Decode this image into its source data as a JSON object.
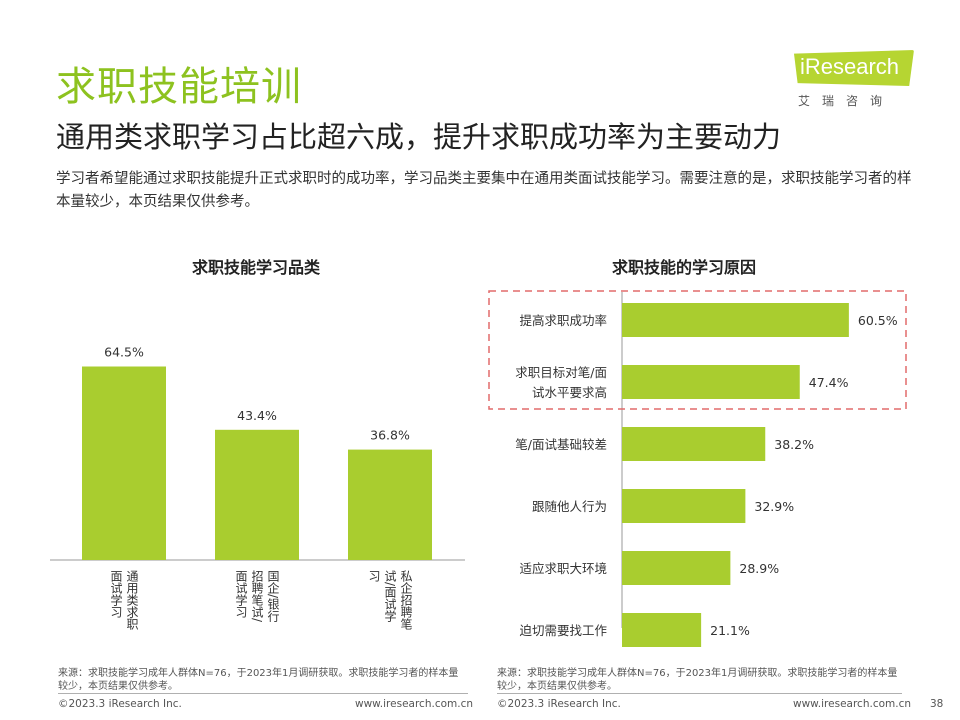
{
  "header": {
    "title": "求职技能培训",
    "subtitle": "通用类求职学习占比超六成，提升求职成功率为主要动力",
    "description": "学习者希望能通过求职技能提升正式求职时的成功率，学习品类主要集中在通用类面试技能学习。需要注意的是，求职技能学习者的样本量较少，本页结果仅供参考。"
  },
  "logo": {
    "text": "iResearch",
    "cn": "艾瑞咨询"
  },
  "colors": {
    "accent": "#8dc21f",
    "bar": "#a9cd2f",
    "highlight_box": "#e26b6b"
  },
  "chart_data": [
    {
      "type": "bar",
      "title": "求职技能学习品类",
      "categories": [
        "通用类求职面试学习",
        "国企/银行招聘笔试/面试学习",
        "私企招聘笔试/面试学习"
      ],
      "category_lines": [
        [
          "通用类求职",
          "面试学习"
        ],
        [
          "国企/银行",
          "招聘笔试/",
          "面试学习"
        ],
        [
          "私企招聘笔",
          "试/面试学",
          "习"
        ]
      ],
      "values": [
        64.5,
        43.4,
        36.8
      ],
      "value_labels": [
        "64.5%",
        "43.4%",
        "36.8%"
      ],
      "ylim": [
        0,
        100
      ],
      "grid": false,
      "legend": "none"
    },
    {
      "type": "bar",
      "orientation": "horizontal",
      "title": "求职技能的学习原因",
      "categories": [
        "提高求职成功率",
        "求职目标对笔/面试水平要求高",
        "笔/面试基础较差",
        "跟随他人行为",
        "适应求职大环境",
        "迫切需要找工作"
      ],
      "category_lines": [
        [
          "提高求职成功率"
        ],
        [
          "求职目标对笔/面",
          "试水平要求高"
        ],
        [
          "笔/面试基础较差"
        ],
        [
          "跟随他人行为"
        ],
        [
          "适应求职大环境"
        ],
        [
          "迫切需要找工作"
        ]
      ],
      "values": [
        60.5,
        47.4,
        38.2,
        32.9,
        28.9,
        21.1
      ],
      "value_labels": [
        "60.5%",
        "47.4%",
        "38.2%",
        "32.9%",
        "28.9%",
        "21.1%"
      ],
      "xlim": [
        0,
        100
      ],
      "highlighted_categories": [
        "提高求职成功率",
        "求职目标对笔/面试水平要求高"
      ],
      "grid": false,
      "legend": "none"
    }
  ],
  "footer": {
    "source_left": "来源：求职技能学习成年人群体N=76，于2023年1月调研获取。求职技能学习者的样本量较少，本页结果仅供参考。",
    "source_right": "来源：求职技能学习成年人群体N=76，于2023年1月调研获取。求职技能学习者的样本量较少，本页结果仅供参考。",
    "copyright_left": "©2023.3 iResearch Inc.",
    "url_left": "www.iresearch.com.cn",
    "copyright_right": "©2023.3 iResearch Inc.",
    "url_right": "www.iresearch.com.cn",
    "page_number": "38"
  }
}
